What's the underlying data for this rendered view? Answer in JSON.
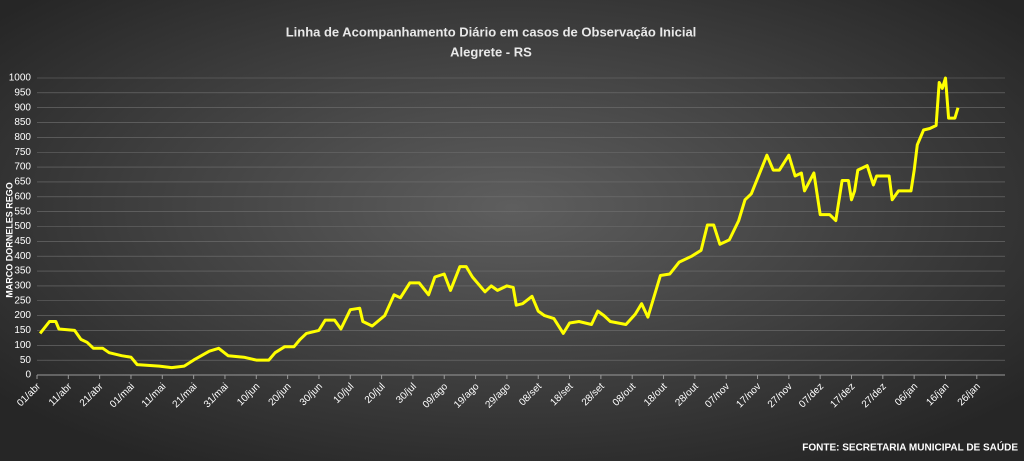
{
  "chart_data": {
    "type": "line",
    "title": "Linha de Acompanhamento  Diário  em casos de Observação  Inicial",
    "subtitle": "Alegrete  - RS",
    "y_label": "MARCO DORNELES REGO",
    "source": "FONTE: SECRETARIA MUNICIPAL DE SAÚDE",
    "x": [
      1,
      4,
      6,
      7,
      12,
      14,
      16,
      18,
      21,
      23,
      27,
      30,
      32,
      39,
      43,
      47,
      50,
      55,
      58,
      61,
      66,
      70,
      74,
      76,
      79,
      82,
      84,
      86,
      90,
      92,
      95,
      97,
      100,
      103,
      104,
      107,
      111,
      114,
      116,
      119,
      122,
      125,
      127,
      130,
      132,
      135,
      137,
      139,
      143,
      145,
      147,
      150,
      152,
      153,
      155,
      158,
      160,
      162,
      165,
      168,
      170,
      173,
      177,
      179,
      181,
      183,
      188,
      191,
      193,
      195,
      199,
      202,
      205,
      209,
      212,
      214,
      216,
      218,
      221,
      224,
      226,
      228,
      233,
      235,
      237,
      240,
      242,
      244,
      245,
      248,
      250,
      253,
      255,
      257,
      259,
      260,
      261,
      262,
      265,
      267,
      268,
      272,
      273,
      275,
      279,
      280,
      281,
      283,
      285,
      287,
      288,
      289,
      290,
      291,
      293,
      294
    ],
    "series": [
      {
        "color": "#ffff00",
        "values": [
          140,
          180,
          180,
          155,
          150,
          120,
          110,
          90,
          90,
          75,
          65,
          60,
          35,
          30,
          25,
          30,
          50,
          80,
          90,
          65,
          60,
          50,
          50,
          75,
          95,
          95,
          120,
          140,
          150,
          185,
          185,
          155,
          220,
          225,
          180,
          165,
          200,
          270,
          260,
          310,
          310,
          270,
          330,
          340,
          285,
          365,
          365,
          330,
          280,
          300,
          285,
          300,
          295,
          235,
          240,
          265,
          215,
          200,
          190,
          140,
          175,
          180,
          170,
          215,
          200,
          180,
          170,
          205,
          240,
          195,
          335,
          340,
          380,
          400,
          420,
          505,
          505,
          440,
          455,
          520,
          590,
          610,
          740,
          690,
          690,
          740,
          670,
          680,
          620,
          680,
          540,
          540,
          520,
          655,
          655,
          590,
          620,
          690,
          705,
          640,
          670,
          670,
          590,
          620,
          620,
          690,
          775,
          825,
          830,
          840,
          985,
          965,
          1000,
          865,
          865,
          900
        ]
      }
    ],
    "xlim": [
      0,
      309
    ],
    "xticks": [
      {
        "value": 0,
        "label": "01/abr"
      },
      {
        "value": 10,
        "label": "11/abr"
      },
      {
        "value": 20,
        "label": "21/abr"
      },
      {
        "value": 30,
        "label": "01/mai"
      },
      {
        "value": 40,
        "label": "11/mai"
      },
      {
        "value": 50,
        "label": "21/mai"
      },
      {
        "value": 60,
        "label": "31/mai"
      },
      {
        "value": 70,
        "label": "10/jun"
      },
      {
        "value": 80,
        "label": "20/jun"
      },
      {
        "value": 90,
        "label": "30/jun"
      },
      {
        "value": 100,
        "label": "10/jul"
      },
      {
        "value": 110,
        "label": "20/jul"
      },
      {
        "value": 120,
        "label": "30/jul"
      },
      {
        "value": 130,
        "label": "09/ago"
      },
      {
        "value": 140,
        "label": "19/ago"
      },
      {
        "value": 150,
        "label": "29/ago"
      },
      {
        "value": 160,
        "label": "08/set"
      },
      {
        "value": 170,
        "label": "18/set"
      },
      {
        "value": 180,
        "label": "28/set"
      },
      {
        "value": 190,
        "label": "08/out"
      },
      {
        "value": 200,
        "label": "18/out"
      },
      {
        "value": 210,
        "label": "28/out"
      },
      {
        "value": 220,
        "label": "07/nov"
      },
      {
        "value": 230,
        "label": "17/nov"
      },
      {
        "value": 240,
        "label": "27/nov"
      },
      {
        "value": 250,
        "label": "07/dez"
      },
      {
        "value": 260,
        "label": "17/dez"
      },
      {
        "value": 270,
        "label": "27/dez"
      },
      {
        "value": 280,
        "label": "06/jan"
      },
      {
        "value": 290,
        "label": "16/jan"
      },
      {
        "value": 300,
        "label": "26/jan"
      }
    ],
    "ylim": [
      0,
      1000
    ],
    "yticks": [
      0,
      50,
      100,
      150,
      200,
      250,
      300,
      350,
      400,
      450,
      500,
      550,
      600,
      650,
      700,
      750,
      800,
      850,
      900,
      950,
      1000
    ],
    "grid": true
  }
}
